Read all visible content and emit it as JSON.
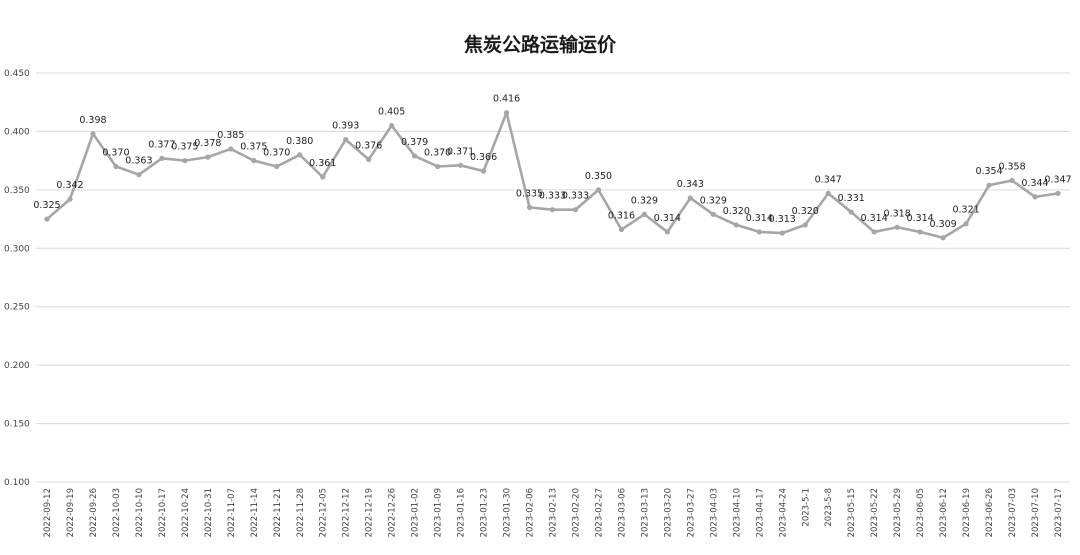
{
  "chart_data": {
    "type": "line",
    "title": "焦炭公路运输运价",
    "xlabel": "",
    "ylabel": "",
    "ylim": [
      0.1,
      0.45
    ],
    "yticks": [
      "0.100",
      "0.150",
      "0.200",
      "0.250",
      "0.300",
      "0.350",
      "0.400",
      "0.450"
    ],
    "grid": true,
    "legend": "none",
    "colors": {
      "line": "#a6a6a6",
      "grid": "#d9d9d9"
    },
    "categories": [
      "2022-09-12",
      "2022-09-19",
      "2022-09-26",
      "2022-10-03",
      "2022-10-10",
      "2022-10-17",
      "2022-10-24",
      "2022-10-31",
      "2022-11-07",
      "2022-11-14",
      "2022-11-21",
      "2022-11-28",
      "2022-12-05",
      "2022-12-12",
      "2022-12-19",
      "2022-12-26",
      "2023-01-02",
      "2023-01-09",
      "2023-01-16",
      "2023-01-23",
      "2023-01-30",
      "2023-02-06",
      "2023-02-13",
      "2023-02-20",
      "2023-02-27",
      "2023-03-06",
      "2023-03-13",
      "2023-03-20",
      "2023-03-27",
      "2023-04-03",
      "2023-04-10",
      "2023-04-17",
      "2023-04-24",
      "2023-5-1",
      "2023-5-8",
      "2023-05-15",
      "2023-05-22",
      "2023-05-29",
      "2023-06-05",
      "2023-06-12",
      "2023-06-19",
      "2023-06-26",
      "2023-07-03",
      "2023-07-10",
      "2023-07-17"
    ],
    "series": [
      {
        "name": "",
        "values": [
          0.325,
          0.342,
          0.398,
          0.37,
          0.363,
          0.377,
          0.375,
          0.378,
          0.385,
          0.375,
          0.37,
          0.38,
          0.361,
          0.393,
          0.376,
          0.405,
          0.379,
          0.37,
          0.371,
          0.366,
          0.416,
          0.335,
          0.333,
          0.333,
          0.35,
          0.316,
          0.329,
          0.314,
          0.343,
          0.329,
          0.32,
          0.314,
          0.313,
          0.32,
          0.347,
          0.331,
          0.314,
          0.318,
          0.314,
          0.309,
          0.321,
          0.354,
          0.358,
          0.344,
          0.347
        ],
        "labels": [
          "0.325",
          "0.342",
          "0.398",
          "0.370",
          "0.363",
          "0.377",
          "0.375",
          "0.378",
          "0.385",
          "0.375",
          "0.370",
          "0.380",
          "0.361",
          "0.393",
          "0.376",
          "0.405",
          "0.379",
          "0.370",
          "0.371",
          "0.366",
          "0.416",
          "0.335",
          "0.333",
          "0.333",
          "0.350",
          "0.316",
          "0.329",
          "0.314",
          "0.343",
          "0.329",
          "0.320",
          "0.314",
          "0.313",
          "0.320",
          "0.347",
          "0.331",
          "0.314",
          "0.318",
          "0.314",
          "0.309",
          "0.321",
          "0.354",
          "0.358",
          "0.344",
          "0.347"
        ]
      }
    ]
  }
}
